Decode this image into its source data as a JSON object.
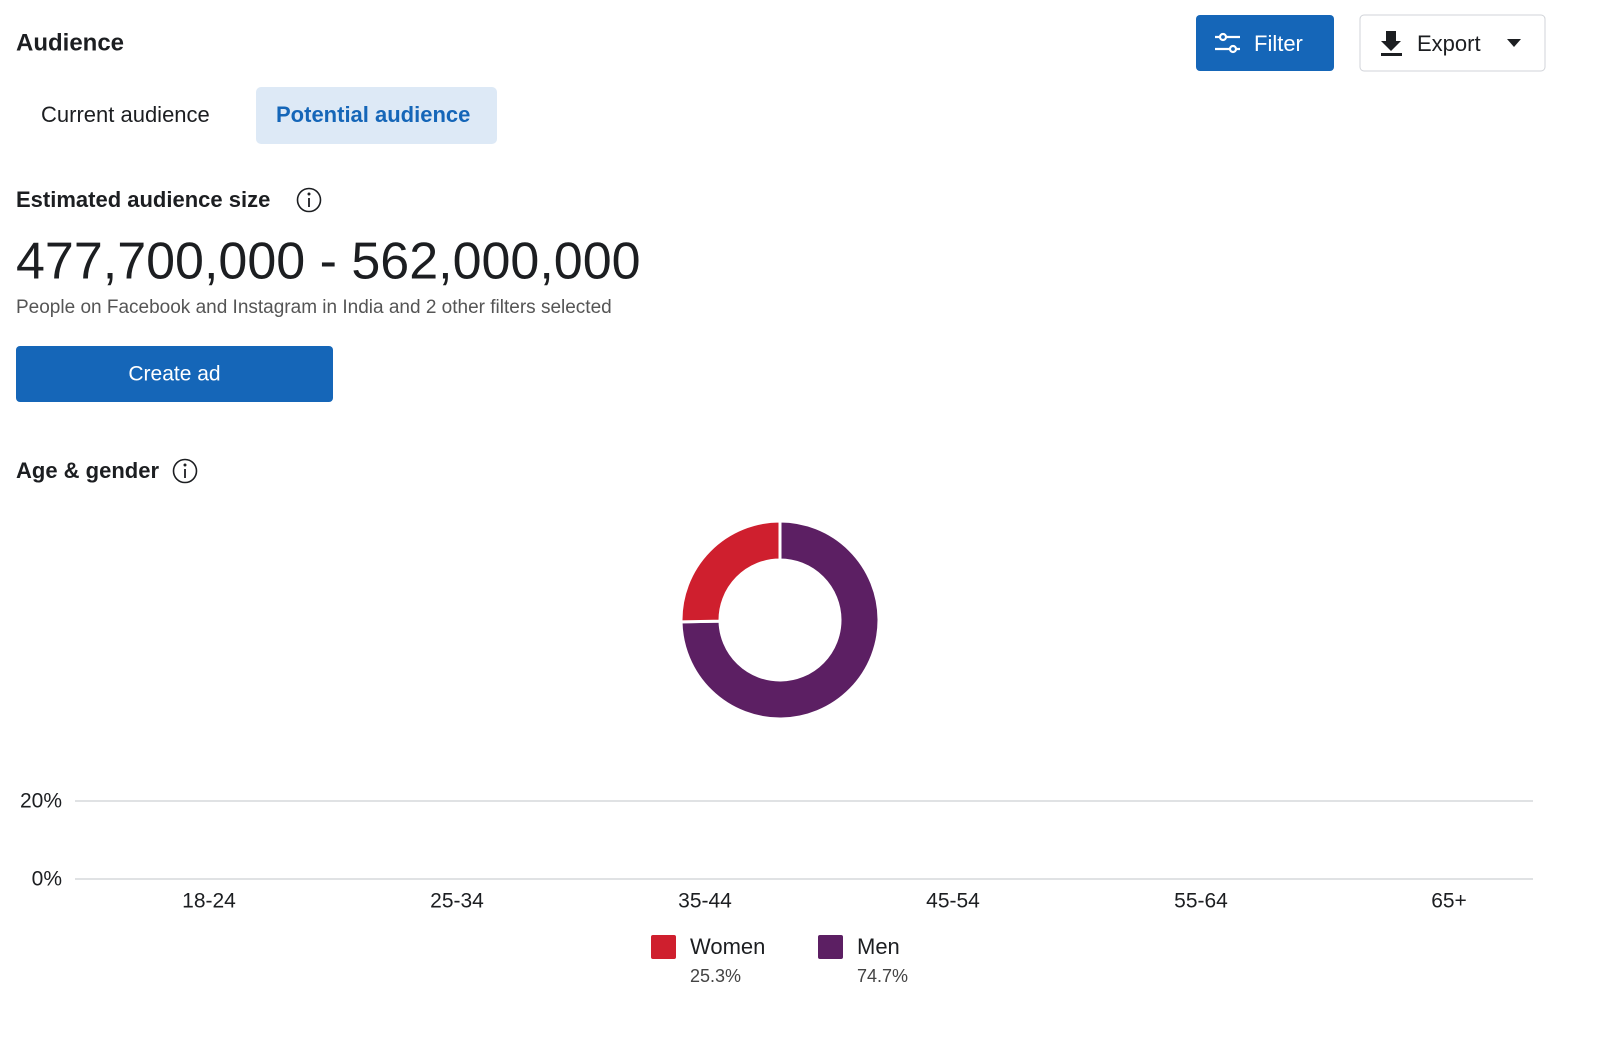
{
  "header": {
    "title": "Audience",
    "filter_button": "Filter",
    "export_button": "Export"
  },
  "tabs": [
    "Current audience",
    "Potential audience"
  ],
  "estimate": {
    "title": "Estimated audience size",
    "range": "477,700,000 - 562,000,000",
    "description": "People on Facebook and Instagram in India and 2 other filters selected",
    "button": "Create ad"
  },
  "chart_data": [
    {
      "type": "pie",
      "title": "Age & gender",
      "donut": true,
      "categories": [
        "Women",
        "Men"
      ],
      "values": [
        25.3,
        74.7
      ],
      "value_labels": [
        "25.3%",
        "74.7%"
      ],
      "colors": [
        "#cf1f2e",
        "#5c1f63"
      ]
    },
    {
      "type": "bar",
      "categories": [
        "18-24",
        "25-34",
        "35-44",
        "45-54",
        "55-64",
        "65+"
      ],
      "ylim": [
        0,
        20
      ],
      "yticks": [
        {
          "value": 0,
          "label": "0%"
        },
        {
          "value": 20,
          "label": "20%"
        }
      ],
      "grid": true
    }
  ]
}
